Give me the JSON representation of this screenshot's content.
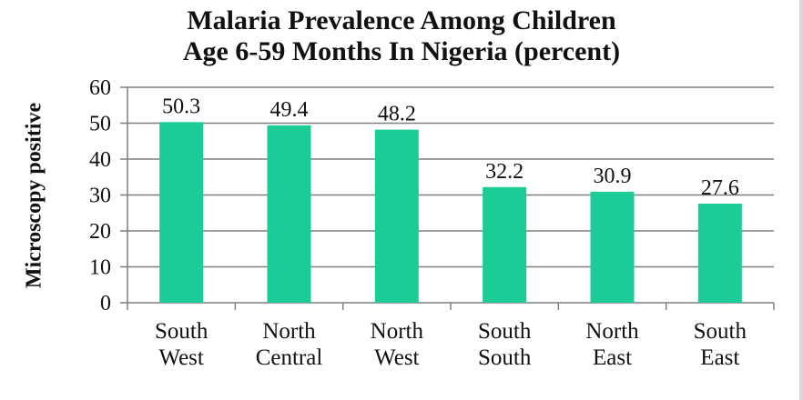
{
  "chart_data": {
    "type": "bar",
    "title": [
      "Malaria Prevalence Among Children",
      "Age 6-59 Months In Nigeria (percent)"
    ],
    "ylabel": "Microscopy positive",
    "xlabel": "",
    "categories": [
      [
        "South",
        "West"
      ],
      [
        "North",
        "Central"
      ],
      [
        "North",
        "West"
      ],
      [
        "South",
        "South"
      ],
      [
        "North",
        "East"
      ],
      [
        "South",
        "East"
      ]
    ],
    "values": [
      50.3,
      49.4,
      48.2,
      32.2,
      30.9,
      27.6
    ],
    "value_labels": [
      "50.3",
      "49.4",
      "48.2",
      "32.2",
      "30.9",
      "27.6"
    ],
    "ylim": [
      0,
      60
    ],
    "yticks": [
      0,
      10,
      20,
      30,
      40,
      50,
      60
    ],
    "grid": true,
    "legend": "none",
    "bar_color": "#1ccc96",
    "grid_color": "#7f7f7f"
  }
}
